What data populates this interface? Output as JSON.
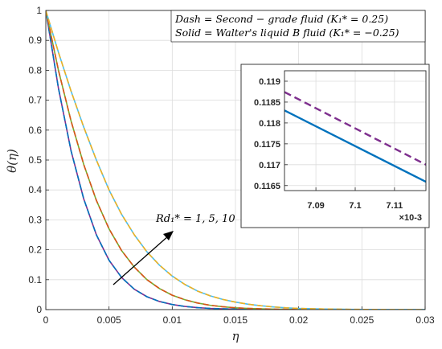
{
  "chart_data": [
    {
      "type": "line",
      "xlabel": "η",
      "ylabel": "θ(η)",
      "xlim": [
        0,
        0.03
      ],
      "ylim": [
        0,
        1
      ],
      "grid": true,
      "xticks": [
        0,
        0.005,
        0.01,
        0.015,
        0.02,
        0.025,
        0.03
      ],
      "xtick_labels": [
        "0",
        "0.005",
        "0.01",
        "0.015",
        "0.02",
        "0.025",
        "0.03"
      ],
      "yticks": [
        0,
        0.1,
        0.2,
        0.3,
        0.4,
        0.5,
        0.6,
        0.7,
        0.8,
        0.9,
        1
      ],
      "ytick_labels": [
        "0",
        "0.1",
        "0.2",
        "0.3",
        "0.4",
        "0.5",
        "0.6",
        "0.7",
        "0.8",
        "0.9",
        "1"
      ],
      "legend_placement": "top-right",
      "legend_lines": [
        "Dash = Second − grade fluid (K₁* = 0.25)",
        "Solid = Walter's liquid B fluid (K₁* = −0.25)"
      ],
      "annotation": "Rd₁* = 1, 5, 10",
      "x": [
        0,
        0.001,
        0.002,
        0.003,
        0.004,
        0.005,
        0.006,
        0.007,
        0.008,
        0.009,
        0.01,
        0.011,
        0.012,
        0.013,
        0.014,
        0.015,
        0.016,
        0.017,
        0.018,
        0.019,
        0.02,
        0.021,
        0.022,
        0.023,
        0.024,
        0.025,
        0.026,
        0.027,
        0.028,
        0.029,
        0.03
      ],
      "series": [
        {
          "color": "#7e2f8e",
          "style": "solid",
          "values": [
            1,
            0.74,
            0.53,
            0.37,
            0.25,
            0.165,
            0.107,
            0.068,
            0.043,
            0.027,
            0.017,
            0.0105,
            0.0065,
            0.004,
            0.0025,
            0.0015,
            0.001,
            0.0006,
            0.0004,
            0.0002,
            0.0001,
            0,
            0,
            0,
            0,
            0,
            0,
            0,
            0,
            0,
            0
          ]
        },
        {
          "color": "#0072bd",
          "style": "dash",
          "values": [
            1,
            0.74,
            0.53,
            0.37,
            0.25,
            0.165,
            0.107,
            0.068,
            0.043,
            0.027,
            0.017,
            0.0105,
            0.0065,
            0.004,
            0.0025,
            0.0015,
            0.001,
            0.0006,
            0.0004,
            0.0002,
            0.0001,
            0,
            0,
            0,
            0,
            0,
            0,
            0,
            0,
            0,
            0
          ]
        },
        {
          "color": "#77ac30",
          "style": "solid",
          "values": [
            1,
            0.8,
            0.63,
            0.485,
            0.365,
            0.27,
            0.197,
            0.142,
            0.1,
            0.07,
            0.048,
            0.033,
            0.022,
            0.0145,
            0.0095,
            0.006,
            0.004,
            0.0025,
            0.0015,
            0.001,
            0.0006,
            0.0003,
            0.0002,
            0.0001,
            0,
            0,
            0,
            0,
            0,
            0,
            0
          ]
        },
        {
          "color": "#d95319",
          "style": "dash",
          "values": [
            1,
            0.8,
            0.63,
            0.485,
            0.365,
            0.27,
            0.197,
            0.142,
            0.1,
            0.07,
            0.048,
            0.033,
            0.022,
            0.0145,
            0.0095,
            0.006,
            0.004,
            0.0025,
            0.0015,
            0.001,
            0.0006,
            0.0003,
            0.0002,
            0.0001,
            0,
            0,
            0,
            0,
            0,
            0,
            0
          ]
        },
        {
          "color": "#4dbeee",
          "style": "solid",
          "values": [
            1,
            0.86,
            0.73,
            0.61,
            0.5,
            0.4,
            0.318,
            0.25,
            0.193,
            0.148,
            0.112,
            0.084,
            0.062,
            0.046,
            0.034,
            0.025,
            0.018,
            0.013,
            0.009,
            0.006,
            0.004,
            0.003,
            0.002,
            0.0015,
            0.001,
            0.0007,
            0.0005,
            0.0003,
            0.0002,
            0.0001,
            0
          ]
        },
        {
          "color": "#edb120",
          "style": "dash",
          "values": [
            1,
            0.86,
            0.73,
            0.61,
            0.5,
            0.4,
            0.318,
            0.25,
            0.193,
            0.148,
            0.112,
            0.084,
            0.062,
            0.046,
            0.034,
            0.025,
            0.018,
            0.013,
            0.009,
            0.006,
            0.004,
            0.003,
            0.002,
            0.0015,
            0.001,
            0.0007,
            0.0005,
            0.0003,
            0.0002,
            0.0001,
            0
          ]
        }
      ]
    },
    {
      "type": "line",
      "xlim": [
        7.082,
        7.118
      ],
      "ylim": [
        0.11638,
        0.11925
      ],
      "grid": true,
      "xticks": [
        7.09,
        7.1,
        7.11
      ],
      "xtick_labels": [
        "7.09",
        "7.1",
        "7.11"
      ],
      "x_exponent": "×10-3",
      "yticks": [
        0.1165,
        0.117,
        0.1175,
        0.118,
        0.1185,
        0.119
      ],
      "ytick_labels": [
        "0.1165",
        "0.117",
        "0.1175",
        "0.118",
        "0.1185",
        "0.119"
      ],
      "x": [
        7.082,
        7.118
      ],
      "series": [
        {
          "color": "#7e2f8e",
          "style": "dash",
          "values": [
            0.11874,
            0.117
          ]
        },
        {
          "color": "#0072bd",
          "style": "solid",
          "values": [
            0.1183,
            0.11659
          ]
        }
      ]
    }
  ]
}
